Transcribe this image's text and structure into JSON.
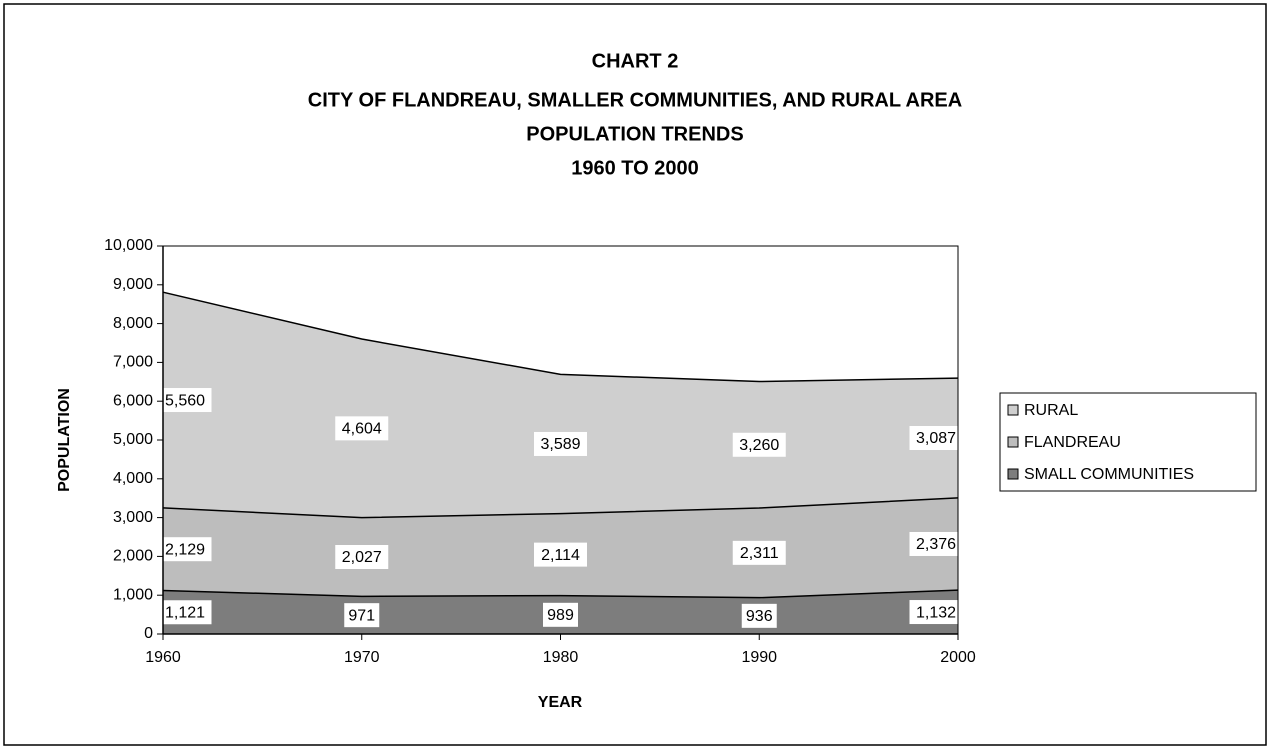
{
  "chart_data": {
    "type": "stacked_area",
    "title": [
      "CHART 2",
      "CITY OF FLANDREAU, SMALLER COMMUNITIES, AND RURAL AREA",
      "POPULATION TRENDS",
      "1960 TO 2000"
    ],
    "x_label": "YEAR",
    "y_label": "POPULATION",
    "x": [
      1960,
      1970,
      1980,
      1990,
      2000
    ],
    "series": [
      {
        "name": "SMALL COMMUNITIES",
        "color": "#7d7d7d",
        "values": [
          1121,
          971,
          989,
          936,
          1132
        ],
        "value_labels": [
          "1,121",
          "971",
          "989",
          "936",
          "1,132"
        ]
      },
      {
        "name": "FLANDREAU",
        "color": "#bdbdbd",
        "values": [
          2129,
          2027,
          2114,
          2311,
          2376
        ],
        "value_labels": [
          "2,129",
          "2,027",
          "2,114",
          "2,311",
          "2,376"
        ]
      },
      {
        "name": "RURAL",
        "color": "#cfcfcf",
        "values": [
          5560,
          4604,
          3589,
          3260,
          3087
        ],
        "value_labels": [
          "5,560",
          "4,604",
          "3,589",
          "3,260",
          "3,087"
        ]
      }
    ],
    "xlim": [
      1960,
      2000
    ],
    "xticks": [
      1960,
      1970,
      1980,
      1990,
      2000
    ],
    "ylim": [
      0,
      10000
    ],
    "yticks": [
      0,
      {
        "value": 1000,
        "label": "1,000"
      },
      {
        "value": 2000,
        "label": "2,000"
      },
      {
        "value": 3000,
        "label": "3,000"
      },
      {
        "value": 4000,
        "label": "4,000"
      },
      {
        "value": 5000,
        "label": "5,000"
      },
      {
        "value": 6000,
        "label": "6,000"
      },
      {
        "value": 7000,
        "label": "7,000"
      },
      {
        "value": 8000,
        "label": "8,000"
      },
      {
        "value": 9000,
        "label": "9,000"
      },
      {
        "value": 10000,
        "label": "10,000"
      }
    ],
    "legend": "right"
  }
}
